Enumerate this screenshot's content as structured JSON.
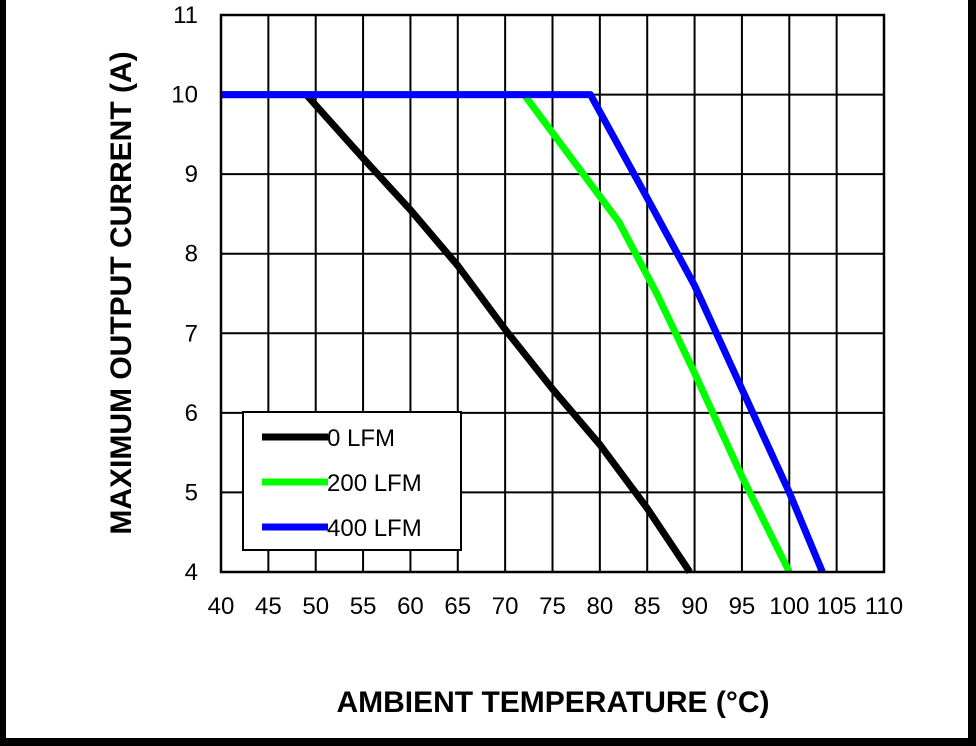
{
  "chart_data": {
    "type": "line",
    "title": "",
    "xlabel": "AMBIENT TEMPERATURE (°C)",
    "ylabel": "MAXIMUM OUTPUT CURRENT (A)",
    "xlim": [
      40,
      110
    ],
    "ylim": [
      4,
      11
    ],
    "grid": true,
    "x_ticks": [
      40,
      45,
      50,
      55,
      60,
      65,
      70,
      75,
      80,
      85,
      90,
      95,
      100,
      105,
      110
    ],
    "y_ticks": [
      4,
      5,
      6,
      7,
      8,
      9,
      10,
      11
    ],
    "x_tick_labels": [
      "40",
      "45",
      "50",
      "55",
      "60",
      "65",
      "70",
      "75",
      "80",
      "85",
      "90",
      "95",
      "100",
      "105",
      "110"
    ],
    "y_tick_labels": [
      "4",
      "5",
      "6",
      "7",
      "8",
      "9",
      "10",
      "11"
    ],
    "legend_position": "bottom-left",
    "series": [
      {
        "name": "0 LFM",
        "color": "#000000",
        "points": [
          [
            40,
            10
          ],
          [
            49,
            10
          ],
          [
            55,
            9.2
          ],
          [
            60,
            8.55
          ],
          [
            65,
            7.85
          ],
          [
            70,
            7.05
          ],
          [
            75,
            6.3
          ],
          [
            80,
            5.6
          ],
          [
            85,
            4.8
          ],
          [
            89.5,
            4
          ]
        ]
      },
      {
        "name": "200 LFM",
        "color": "#00ff00",
        "points": [
          [
            40,
            10
          ],
          [
            72,
            10
          ],
          [
            77,
            9.2
          ],
          [
            82,
            8.4
          ],
          [
            86,
            7.5
          ],
          [
            90,
            6.5
          ],
          [
            95,
            5.2
          ],
          [
            100,
            4
          ]
        ]
      },
      {
        "name": "400 LFM",
        "color": "#0000ff",
        "points": [
          [
            40,
            10
          ],
          [
            79,
            10
          ],
          [
            85,
            8.7
          ],
          [
            90,
            7.6
          ],
          [
            95,
            6.3
          ],
          [
            100,
            5
          ],
          [
            103.5,
            4
          ]
        ]
      }
    ]
  }
}
